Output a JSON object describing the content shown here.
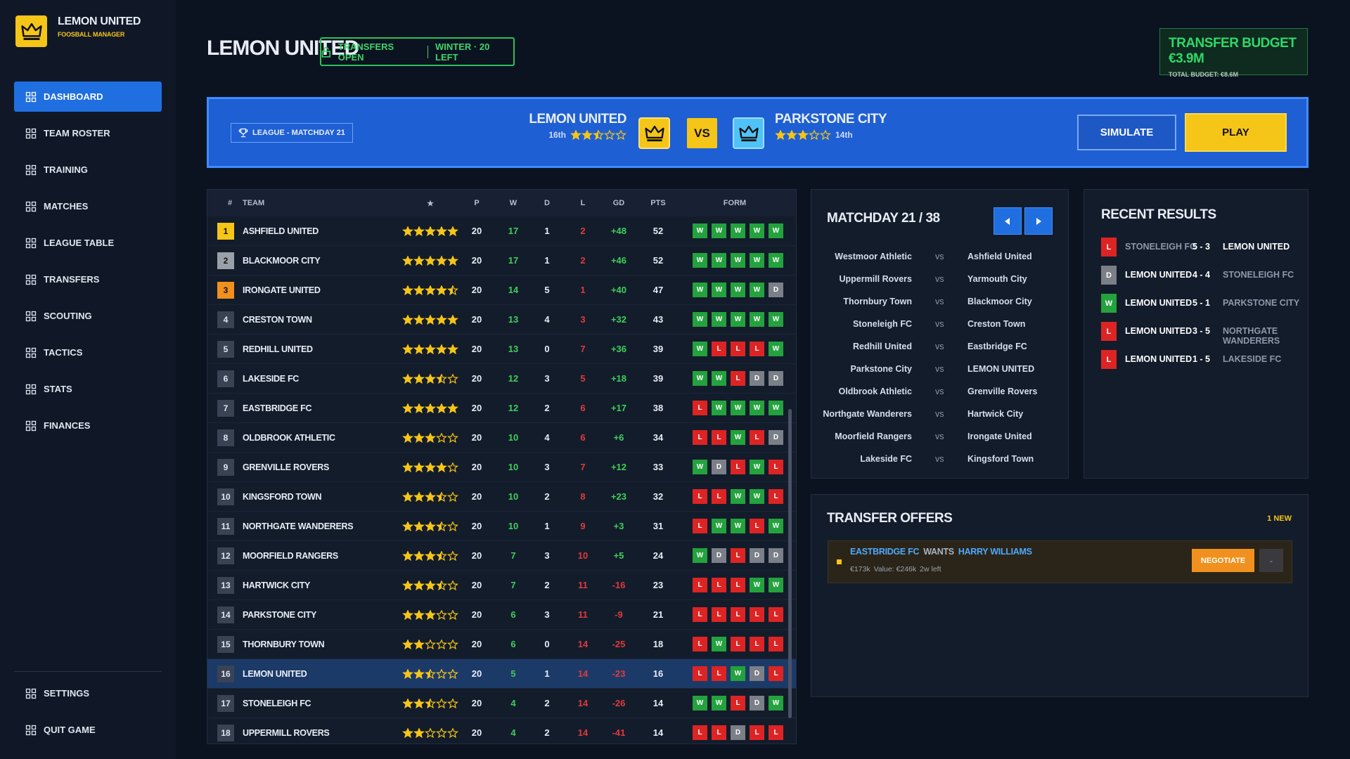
{
  "sidebar": {
    "club": "LEMON UNITED",
    "subtitle": "FOOSBALL MANAGER",
    "nav": [
      "DASHBOARD",
      "TEAM ROSTER",
      "TRAINING",
      "MATCHES",
      "LEAGUE TABLE",
      "TRANSFERS",
      "SCOUTING",
      "TACTICS",
      "STATS",
      "FINANCES"
    ],
    "footer": [
      "SETTINGS",
      "QUIT GAME"
    ]
  },
  "header": {
    "title": "LEMON UNITED",
    "status": "TRANSFERS OPEN",
    "window": "WINTER · 20 LEFT",
    "budget": "TRANSFER BUDGET €3.9M",
    "total": "TOTAL BUDGET: €8.6M"
  },
  "match": {
    "competition": "LEAGUE - MATCHDAY 21",
    "home": {
      "name": "LEMON UNITED",
      "position": "16th",
      "rating": 2.5
    },
    "vs": "VS",
    "away": {
      "name": "PARKSTONE CITY",
      "position": "14th",
      "rating": 3
    },
    "actions": [
      "SIMULATE",
      "PLAY"
    ]
  },
  "table": {
    "columns": [
      "#",
      "TEAM",
      "★",
      "P",
      "W",
      "D",
      "L",
      "GD",
      "PTS",
      "FORM"
    ],
    "rows": [
      {
        "pos": 1,
        "team": "ASHFIELD UNITED",
        "rating": 5,
        "p": 20,
        "w": 17,
        "d": 1,
        "l": 2,
        "gd": "+48",
        "pts": 52,
        "form": [
          "W",
          "W",
          "W",
          "W",
          "W"
        ]
      },
      {
        "pos": 2,
        "team": "BLACKMOOR CITY",
        "rating": 5,
        "p": 20,
        "w": 17,
        "d": 1,
        "l": 2,
        "gd": "+46",
        "pts": 52,
        "form": [
          "W",
          "W",
          "W",
          "W",
          "W"
        ]
      },
      {
        "pos": 3,
        "team": "IRONGATE UNITED",
        "rating": 4.5,
        "p": 20,
        "w": 14,
        "d": 5,
        "l": 1,
        "gd": "+40",
        "pts": 47,
        "form": [
          "W",
          "W",
          "W",
          "W",
          "D"
        ]
      },
      {
        "pos": 4,
        "team": "CRESTON TOWN",
        "rating": 5,
        "p": 20,
        "w": 13,
        "d": 4,
        "l": 3,
        "gd": "+32",
        "pts": 43,
        "form": [
          "W",
          "W",
          "W",
          "W",
          "W"
        ]
      },
      {
        "pos": 5,
        "team": "REDHILL UNITED",
        "rating": 5,
        "p": 20,
        "w": 13,
        "d": 0,
        "l": 7,
        "gd": "+36",
        "pts": 39,
        "form": [
          "W",
          "L",
          "L",
          "L",
          "W"
        ]
      },
      {
        "pos": 6,
        "team": "LAKESIDE FC",
        "rating": 3.5,
        "p": 20,
        "w": 12,
        "d": 3,
        "l": 5,
        "gd": "+18",
        "pts": 39,
        "form": [
          "W",
          "W",
          "L",
          "D",
          "D"
        ]
      },
      {
        "pos": 7,
        "team": "EASTBRIDGE FC",
        "rating": 5,
        "p": 20,
        "w": 12,
        "d": 2,
        "l": 6,
        "gd": "+17",
        "pts": 38,
        "form": [
          "L",
          "W",
          "W",
          "W",
          "W"
        ]
      },
      {
        "pos": 8,
        "team": "OLDBROOK ATHLETIC",
        "rating": 3,
        "p": 20,
        "w": 10,
        "d": 4,
        "l": 6,
        "gd": "+6",
        "pts": 34,
        "form": [
          "L",
          "L",
          "W",
          "L",
          "D"
        ]
      },
      {
        "pos": 9,
        "team": "GRENVILLE ROVERS",
        "rating": 4,
        "p": 20,
        "w": 10,
        "d": 3,
        "l": 7,
        "gd": "+12",
        "pts": 33,
        "form": [
          "W",
          "D",
          "L",
          "W",
          "L"
        ]
      },
      {
        "pos": 10,
        "team": "KINGSFORD TOWN",
        "rating": 3.5,
        "p": 20,
        "w": 10,
        "d": 2,
        "l": 8,
        "gd": "+23",
        "pts": 32,
        "form": [
          "L",
          "L",
          "W",
          "W",
          "L"
        ]
      },
      {
        "pos": 11,
        "team": "NORTHGATE WANDERERS",
        "rating": 3.5,
        "p": 20,
        "w": 10,
        "d": 1,
        "l": 9,
        "gd": "+3",
        "pts": 31,
        "form": [
          "L",
          "W",
          "W",
          "L",
          "W"
        ]
      },
      {
        "pos": 12,
        "team": "MOORFIELD RANGERS",
        "rating": 3.5,
        "p": 20,
        "w": 7,
        "d": 3,
        "l": 10,
        "gd": "+5",
        "pts": 24,
        "form": [
          "W",
          "D",
          "L",
          "D",
          "D"
        ]
      },
      {
        "pos": 13,
        "team": "HARTWICK CITY",
        "rating": 3.5,
        "p": 20,
        "w": 7,
        "d": 2,
        "l": 11,
        "gd": "-16",
        "pts": 23,
        "form": [
          "L",
          "L",
          "L",
          "W",
          "W"
        ]
      },
      {
        "pos": 14,
        "team": "PARKSTONE CITY",
        "rating": 3,
        "p": 20,
        "w": 6,
        "d": 3,
        "l": 11,
        "gd": "-9",
        "pts": 21,
        "form": [
          "L",
          "L",
          "L",
          "L",
          "L"
        ]
      },
      {
        "pos": 15,
        "team": "THORNBURY TOWN",
        "rating": 2,
        "p": 20,
        "w": 6,
        "d": 0,
        "l": 14,
        "gd": "-25",
        "pts": 18,
        "form": [
          "L",
          "W",
          "L",
          "L",
          "L"
        ]
      },
      {
        "pos": 16,
        "team": "LEMON UNITED",
        "rating": 2.5,
        "p": 20,
        "w": 5,
        "d": 1,
        "l": 14,
        "gd": "-23",
        "pts": 16,
        "form": [
          "L",
          "L",
          "W",
          "D",
          "L"
        ]
      },
      {
        "pos": 17,
        "team": "STONELEIGH FC",
        "rating": 2.5,
        "p": 20,
        "w": 4,
        "d": 2,
        "l": 14,
        "gd": "-26",
        "pts": 14,
        "form": [
          "W",
          "W",
          "L",
          "D",
          "W"
        ]
      },
      {
        "pos": 18,
        "team": "UPPERMILL ROVERS",
        "rating": 2,
        "p": 20,
        "w": 4,
        "d": 2,
        "l": 14,
        "gd": "-41",
        "pts": 14,
        "form": [
          "L",
          "L",
          "D",
          "L",
          "L"
        ]
      }
    ]
  },
  "matchday": {
    "title": "MATCHDAY 21 / 38",
    "separator": "vs",
    "fixtures": [
      {
        "home": "Westmoor Athletic",
        "away": "Ashfield United"
      },
      {
        "home": "Uppermill Rovers",
        "away": "Yarmouth City"
      },
      {
        "home": "Thornbury Town",
        "away": "Blackmoor City"
      },
      {
        "home": "Stoneleigh FC",
        "away": "Creston Town"
      },
      {
        "home": "Redhill United",
        "away": "Eastbridge FC"
      },
      {
        "home": "Parkstone City",
        "away": "LEMON UNITED"
      },
      {
        "home": "Oldbrook Athletic",
        "away": "Grenville Rovers"
      },
      {
        "home": "Northgate Wanderers",
        "away": "Hartwick City"
      },
      {
        "home": "Moorfield Rangers",
        "away": "Irongate United"
      },
      {
        "home": "Lakeside FC",
        "away": "Kingsford Town"
      }
    ]
  },
  "recent": {
    "title": "RECENT RESULTS",
    "results": [
      {
        "result": "L",
        "home": "STONELEIGH FC",
        "score": "5 - 3",
        "away": "LEMON UNITED"
      },
      {
        "result": "D",
        "home": "LEMON UNITED",
        "score": "4 - 4",
        "away": "STONELEIGH FC"
      },
      {
        "result": "W",
        "home": "LEMON UNITED",
        "score": "5 - 1",
        "away": "PARKSTONE CITY"
      },
      {
        "result": "L",
        "home": "LEMON UNITED",
        "score": "3 - 5",
        "away": "NORTHGATE WANDERERS"
      },
      {
        "result": "L",
        "home": "LEMON UNITED",
        "score": "1 - 5",
        "away": "LAKESIDE FC"
      }
    ]
  },
  "offers": {
    "title": "TRANSFER OFFERS",
    "badge": "1 NEW",
    "items": [
      {
        "club": "EASTBRIDGE FC",
        "verb": "WANTS",
        "player": "HARRY WILLIAMS",
        "fee": "€173k",
        "value": "Value: €246k",
        "deadline": "2w left",
        "action": "NEGOTIATE",
        "dismiss": "-"
      }
    ]
  }
}
